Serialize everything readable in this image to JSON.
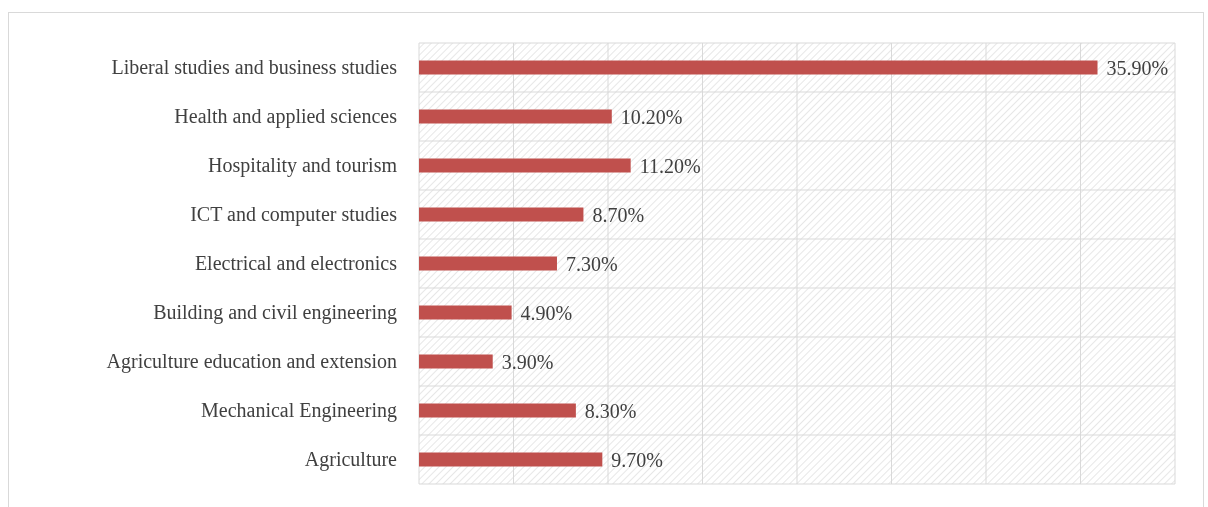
{
  "chart_data": {
    "type": "bar",
    "orientation": "horizontal",
    "categories": [
      "Liberal studies and business studies",
      "Health and applied sciences",
      "Hospitality and tourism",
      "ICT and computer studies",
      "Electrical and electronics",
      "Building and civil engineering",
      "Agriculture education and extension",
      "Mechanical Engineering",
      "Agriculture"
    ],
    "values": [
      35.9,
      10.2,
      11.2,
      8.7,
      7.3,
      4.9,
      3.9,
      8.3,
      9.7
    ],
    "value_labels": [
      "35.90%",
      "10.20%",
      "11.20%",
      "8.70%",
      "7.30%",
      "4.90%",
      "3.90%",
      "8.30%",
      "9.70%"
    ],
    "color": "#c0504d",
    "xlim": [
      0,
      40
    ],
    "xticks": [
      {
        "value": 0,
        "label": null
      },
      {
        "value": 5,
        "label": null
      },
      {
        "value": 10,
        "label": null
      },
      {
        "value": 15,
        "label": null
      },
      {
        "value": 20,
        "label": null
      },
      {
        "value": 25,
        "label": null
      },
      {
        "value": 30,
        "label": null
      },
      {
        "value": 35,
        "label": null
      },
      {
        "value": 40,
        "label": null
      }
    ],
    "tick_labels": "y",
    "grid": true
  }
}
